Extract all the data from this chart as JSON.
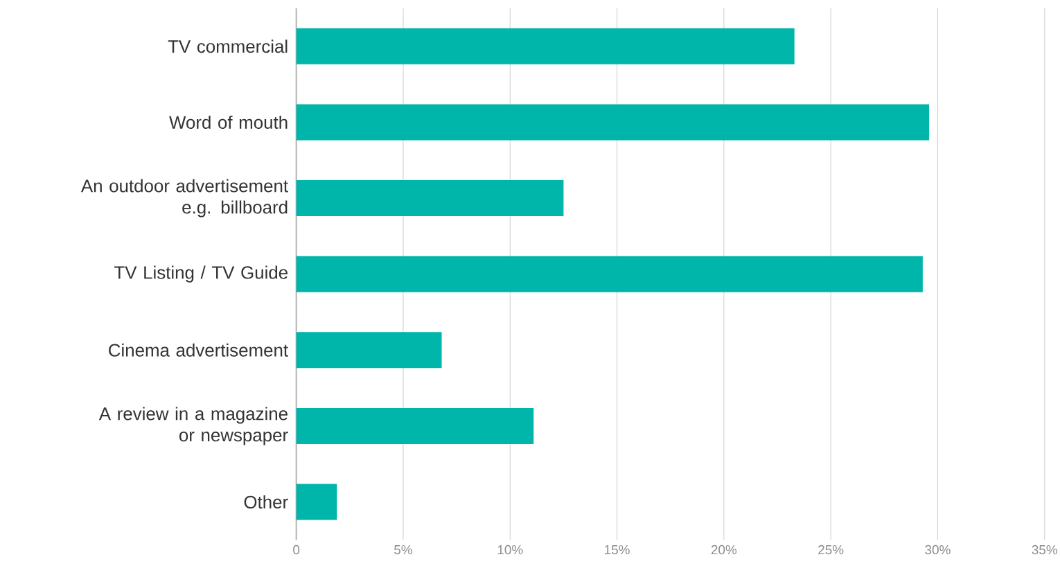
{
  "chart_data": {
    "type": "bar",
    "orientation": "horizontal",
    "categories": [
      "TV commercial",
      "Word of mouth",
      "An outdoor advertisement e.g. billboard",
      "TV Listing / TV Guide",
      "Cinema advertisement",
      "A review in a magazine or newspaper",
      "Other"
    ],
    "values": [
      23.3,
      29.6,
      12.5,
      29.3,
      6.8,
      11.1,
      1.9
    ],
    "color": "#00b5a9",
    "xlim": [
      0,
      35
    ],
    "xticks": [
      0,
      {
        "value": 5,
        "label": "5%"
      },
      {
        "value": 10,
        "label": "10%"
      },
      {
        "value": 15,
        "label": "15%"
      },
      {
        "value": 20,
        "label": "20%"
      },
      {
        "value": 25,
        "label": "25%"
      },
      {
        "value": 30,
        "label": "30%"
      },
      {
        "value": 35,
        "label": "35%"
      }
    ],
    "grid": "x"
  }
}
